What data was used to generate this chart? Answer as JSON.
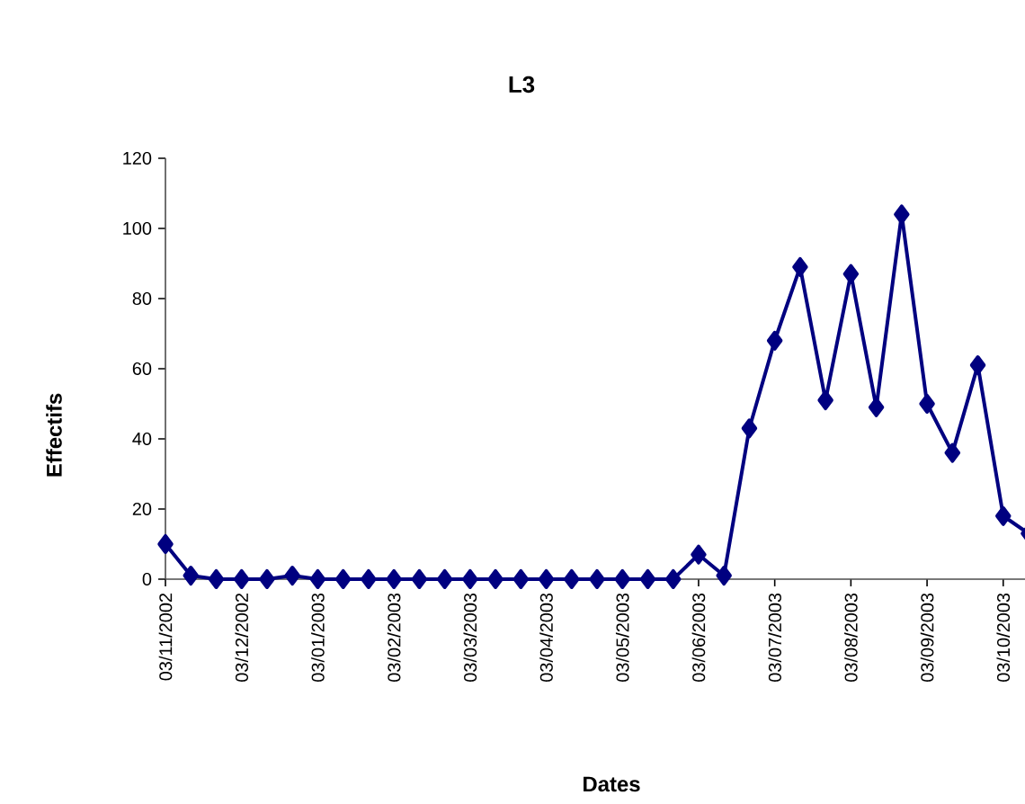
{
  "chart_data": {
    "type": "line",
    "title": "L3",
    "xlabel": "Dates",
    "ylabel": "Effectifs",
    "categories": [
      "03/11/2002",
      null,
      null,
      "03/12/2002",
      null,
      null,
      "03/01/2003",
      null,
      null,
      "03/02/2003",
      null,
      null,
      "03/03/2003",
      null,
      null,
      "03/04/2003",
      null,
      null,
      "03/05/2003",
      null,
      null,
      "03/06/2003",
      null,
      null,
      "03/07/2003",
      null,
      null,
      "03/08/2003",
      null,
      null,
      "03/09/2003",
      null,
      null,
      "03/10/2003",
      null
    ],
    "series": [
      {
        "color": "#000080",
        "values": [
          10,
          1,
          0,
          0,
          0,
          1,
          0,
          0,
          0,
          0,
          0,
          0,
          0,
          0,
          0,
          0,
          0,
          0,
          0,
          0,
          0,
          7,
          1,
          43,
          68,
          89,
          51,
          87,
          49,
          104,
          50,
          36,
          61,
          18,
          13
        ]
      }
    ],
    "ylim": [
      0,
      120
    ],
    "yticks": [
      0,
      20,
      40,
      60,
      80,
      100,
      120
    ],
    "marker": "diamond"
  }
}
